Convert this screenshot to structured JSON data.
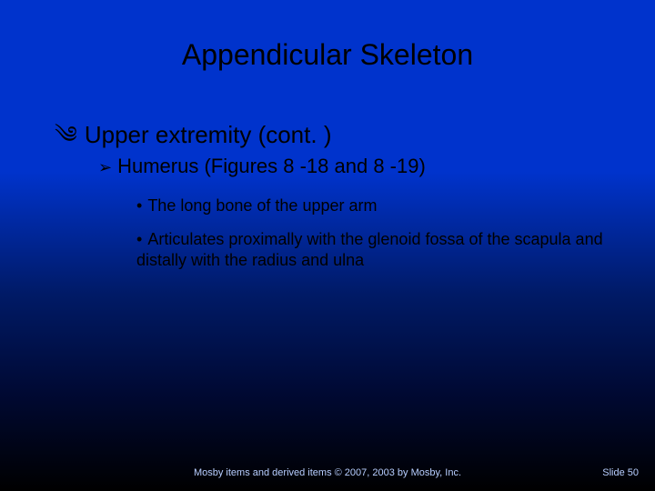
{
  "slide": {
    "background_gradient": [
      "#0033cc",
      "#0033cc",
      "#001a66",
      "#000933",
      "#000000"
    ],
    "text_color": "#000000",
    "footer_color": "#b8cfff",
    "title": "Appendicular Skeleton",
    "title_fontsize": 32,
    "level1": {
      "bullet": "༄",
      "text": "Upper extremity (cont. )",
      "fontsize": 26
    },
    "level2": {
      "bullet": "➢",
      "text": "Humerus (Figures 8 -18 and 8 -19)",
      "fontsize": 22
    },
    "level3": [
      {
        "bullet": "•",
        "text": "The long bone of the upper arm"
      },
      {
        "bullet": "•",
        "text": "Articulates proximally with the glenoid fossa of the scapula and distally with the radius and ulna"
      }
    ],
    "level3_fontsize": 18,
    "footer": {
      "copyright": "Mosby items and derived items © 2007, 2003 by Mosby, Inc.",
      "slide_number": "Slide 50",
      "fontsize": 11
    }
  }
}
